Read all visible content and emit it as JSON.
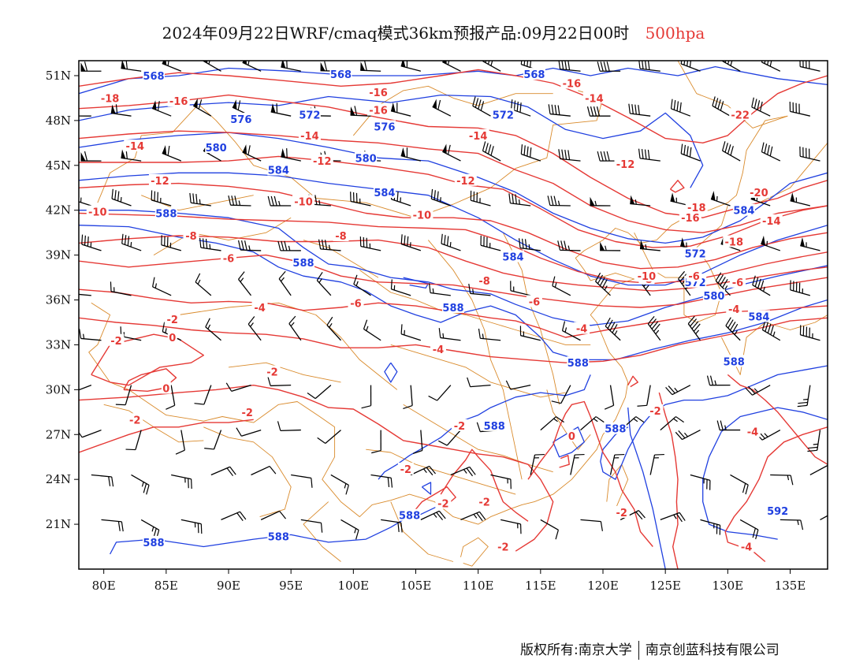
{
  "title": {
    "main": "2024年09月22日WRF/cmaq模式36km预报产品:09月22日00时",
    "level": "500hpa"
  },
  "colors": {
    "height_contour": "#2040e0",
    "temperature_contour": "#e53935",
    "boundary": "#d98a2b",
    "wind_barb": "#000000",
    "frame": "#000000"
  },
  "map": {
    "projection": "lat-lon",
    "lon_range": [
      78,
      138
    ],
    "lat_range": [
      18,
      52
    ],
    "x_ticks": [
      "80E",
      "85E",
      "90E",
      "95E",
      "100E",
      "105E",
      "110E",
      "115E",
      "120E",
      "125E",
      "130E",
      "135E"
    ],
    "y_ticks": [
      "51N",
      "48N",
      "45N",
      "42N",
      "39N",
      "36N",
      "33N",
      "30N",
      "27N",
      "24N",
      "21N"
    ],
    "layers": [
      "geopotential height contours (dagpm)",
      "temperature contours (°C)",
      "wind barbs",
      "province/country boundaries"
    ],
    "height_labels": [
      "568",
      "576",
      "580",
      "584",
      "588",
      "572",
      "592"
    ],
    "temperature_labels": [
      "-18",
      "-16",
      "-14",
      "-12",
      "-10",
      "-8",
      "-6",
      "-4",
      "-2",
      "0",
      "-20",
      "-22"
    ]
  },
  "footer": {
    "copyright_left": "版权所有:南京大学",
    "copyright_right": "南京创蓝科技有限公司"
  }
}
